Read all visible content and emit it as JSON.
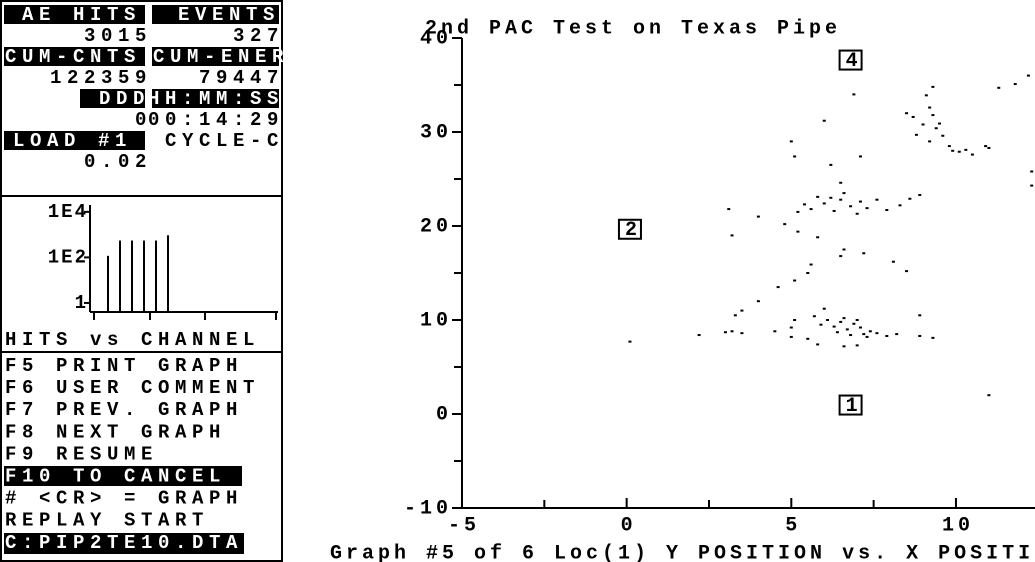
{
  "status": {
    "ae_hits_label": "AE HITS",
    "ae_hits": 3015,
    "events_label": "EVENTS",
    "events": 327,
    "cum_cnts_label": "CUM-CNTS",
    "cum_cnts": 122359,
    "cum_ener_label": "CUM-ENER",
    "cum_ener": 79447,
    "ddd_label": "DDD",
    "ddd": 0,
    "time_label": "HH:MM:SS",
    "time": "00:14:29",
    "load_label": "LOAD #1",
    "cycle": "CYCLE-C",
    "load": 0.02
  },
  "mini_chart": {
    "type": "bar",
    "title": "HITS vs CHANNEL",
    "log_scale": true,
    "categories": [
      null,
      null,
      null,
      null,
      null,
      null
    ],
    "values": [
      117,
      550,
      550,
      550,
      550,
      930
    ],
    "ylim": [
      0.4,
      20000
    ],
    "yticks": [
      {
        "value": 10000,
        "label": "1E4"
      },
      {
        "value": 100,
        "label": "1E2"
      },
      1
    ],
    "color": "#000000"
  },
  "menu": [
    "F5 PRINT GRAPH",
    "F6 USER COMMENT",
    "F7 PREV. GRAPH",
    "F8 NEXT GRAPH",
    "F9 RESUME",
    "F10 TO CANCEL",
    "# <CR> = GRAPH",
    "REPLAY START",
    "C:PIP2TE10.DTA"
  ],
  "chart_data": {
    "type": "scatter",
    "title": "2nd PAC Test on Texas Pipe",
    "x_label": "Graph #5 of 6 Loc(1) Y POSITION vs. X POSITI",
    "xlim": [
      -5,
      12.4
    ],
    "ylim": [
      -10,
      40
    ],
    "xticks": [
      -5,
      0,
      5,
      10
    ],
    "yticks": [
      -10,
      0,
      10,
      20,
      30,
      40
    ],
    "xminor_ticks": [
      -2.5,
      2.5,
      7.5
    ],
    "yminor_ticks": [
      -5,
      5,
      15,
      25,
      35
    ],
    "color": "#000000",
    "annotations": [
      {
        "text": "4",
        "x": 6.8,
        "y": 37.6
      },
      {
        "text": "2",
        "x": 0.1,
        "y": 19.6
      },
      {
        "text": "1",
        "x": 6.8,
        "y": 0.9
      }
    ],
    "x": [
      0.1,
      2.2,
      3.0,
      3.2,
      3.5,
      3.3,
      3.5,
      4.5,
      5.0,
      5.1,
      5.0,
      5.5,
      5.7,
      5.9,
      6.0,
      6.1,
      6.3,
      6.4,
      6.5,
      6.6,
      6.7,
      6.8,
      6.9,
      7.0,
      7.1,
      7.2,
      7.3,
      7.4,
      7.6,
      7.9,
      8.2,
      8.9,
      8.9,
      9.3,
      6.6,
      5.8,
      7.0,
      4.0,
      4.6,
      5.1,
      5.5,
      5.6,
      6.5,
      6.6,
      7.2,
      8.1,
      8.5,
      5.8,
      5.2,
      3.2,
      3.1,
      4.0,
      4.8,
      5.2,
      5.4,
      5.6,
      5.8,
      6.0,
      6.2,
      6.3,
      6.5,
      6.6,
      6.8,
      7.0,
      7.1,
      7.3,
      7.6,
      7.9,
      8.3,
      8.6,
      8.9,
      6.5,
      6.2,
      5.1,
      5.0,
      6.0,
      6.9,
      7.1,
      8.5,
      8.7,
      8.8,
      9.0,
      9.1,
      9.2,
      9.3,
      9.4,
      9.5,
      9.6,
      9.8,
      9.9,
      10.1,
      10.3,
      10.5,
      10.9,
      9.3,
      11.3,
      11.8,
      12.2,
      12.3,
      12.3,
      11.0,
      11.0,
      9.2
    ],
    "values": [
      7.7,
      8.4,
      8.7,
      8.8,
      8.6,
      10.5,
      11,
      8.8,
      9.2,
      10,
      8.2,
      8,
      10.4,
      9.5,
      11.2,
      10,
      9.3,
      8.7,
      9.8,
      10.2,
      9.0,
      8.4,
      9.6,
      10,
      9.2,
      8.5,
      8.2,
      8.8,
      8.6,
      8.3,
      8.5,
      8.3,
      10.5,
      8.1,
      7.2,
      7.4,
      7.3,
      12,
      13.5,
      14.2,
      15,
      15.9,
      16.8,
      17.5,
      17.1,
      16.2,
      15.2,
      18.8,
      19.4,
      19.0,
      21.8,
      21.0,
      20.2,
      21.5,
      22.3,
      21.8,
      23.1,
      22.4,
      23,
      21.6,
      22.8,
      23.5,
      22.1,
      21.3,
      22.6,
      21.9,
      22.8,
      21.7,
      22.2,
      22.9,
      23.3,
      24.6,
      26.5,
      27.4,
      29.0,
      31.2,
      34,
      27.4,
      32,
      31.6,
      29.7,
      30.8,
      33.9,
      32.6,
      31.8,
      30.4,
      30.9,
      29.6,
      28.5,
      28.0,
      27.9,
      28.1,
      27.6,
      28.5,
      34.8,
      34.7,
      35.1,
      36.0,
      25.8,
      24.3,
      2,
      28.3,
      29.0
    ]
  }
}
